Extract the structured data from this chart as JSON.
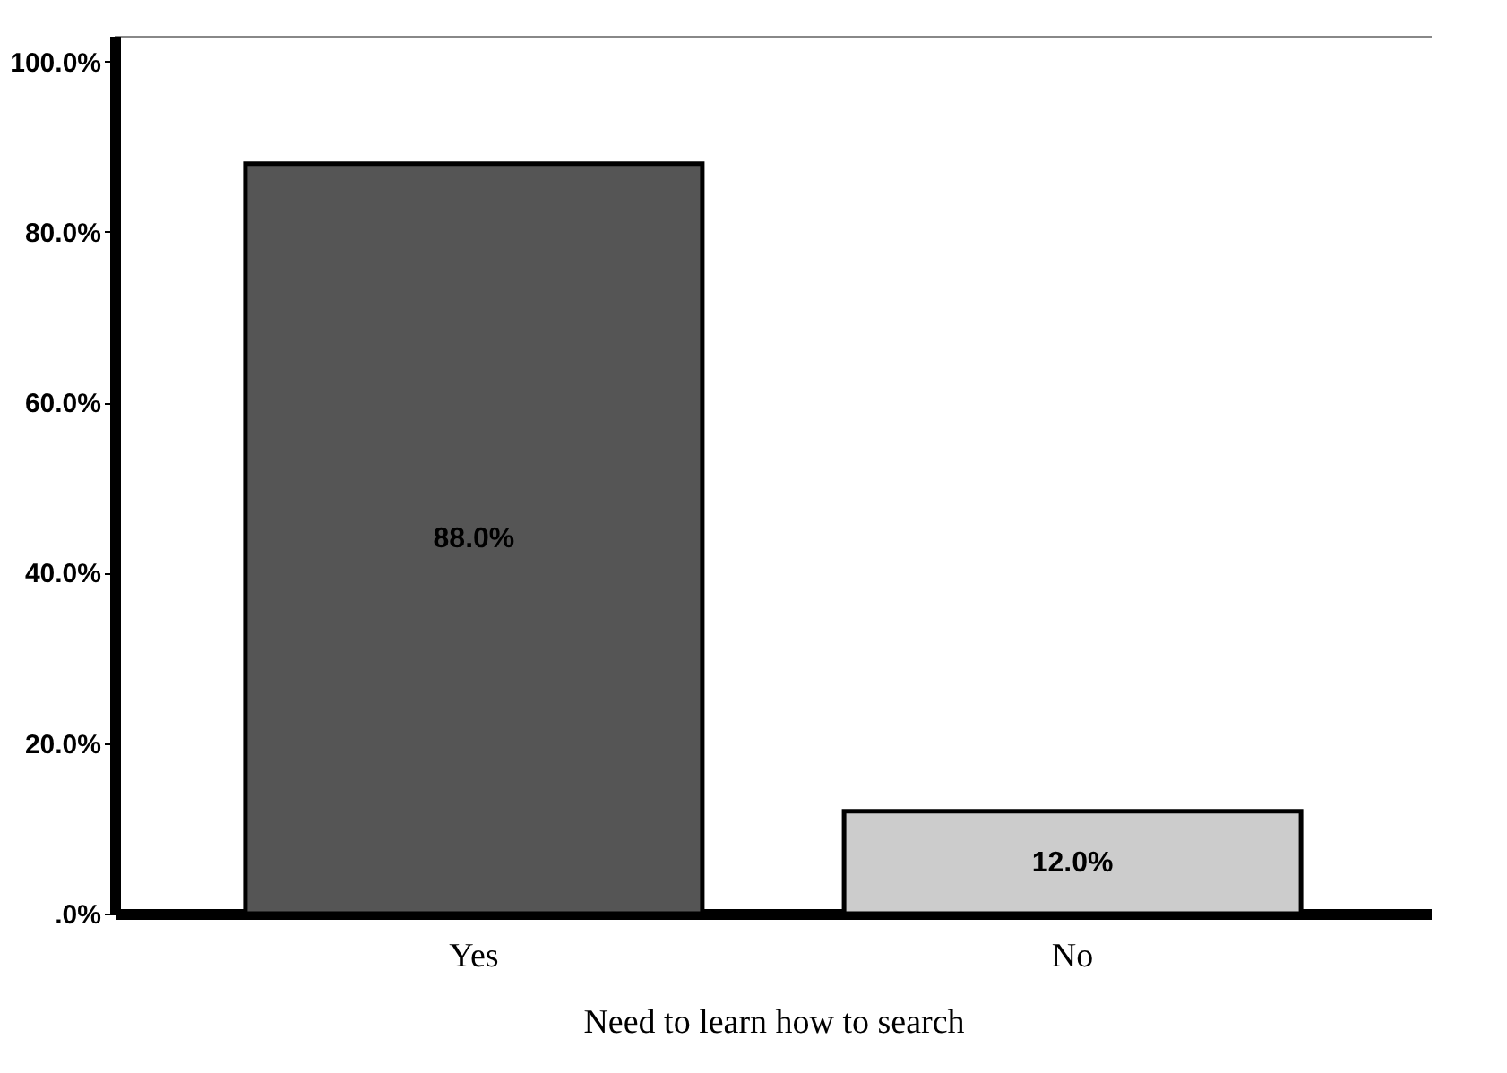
{
  "chart_data": {
    "type": "bar",
    "xlabel": "Need to learn how to search",
    "categories": [
      "Yes",
      "No"
    ],
    "values": [
      88.0,
      12.0
    ],
    "colors": [
      "#555555",
      "#cccccc"
    ],
    "value_labels": [
      "88.0%",
      "12.0%"
    ],
    "ylim": [
      0,
      103
    ],
    "yticks": [
      {
        "value": 0,
        "label": ".0%"
      },
      {
        "value": 20,
        "label": "20.0%"
      },
      {
        "value": 40,
        "label": "40.0%"
      },
      {
        "value": 60,
        "label": "60.0%"
      },
      {
        "value": 80,
        "label": "80.0%"
      },
      {
        "value": 100,
        "label": "100.0%"
      }
    ],
    "grid": false
  }
}
